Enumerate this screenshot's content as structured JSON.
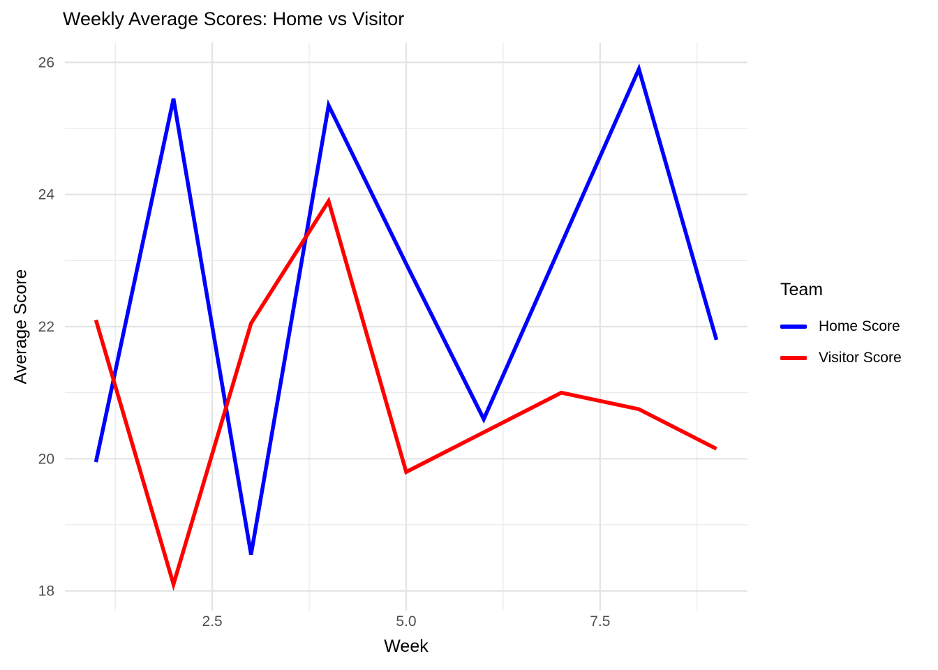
{
  "title": "Weekly Average Scores: Home vs Visitor",
  "colors": {
    "home": "#0000FF",
    "visitor": "#FF0000",
    "tick_text": "#4d4d4d",
    "grid_major": "#e3e3e3",
    "grid_minor": "#ebebeb",
    "background": "#ffffff"
  },
  "legend": {
    "title": "Team",
    "items": [
      {
        "label": "Home Score",
        "color": "#0000FF"
      },
      {
        "label": "Visitor Score",
        "color": "#FF0000"
      }
    ]
  },
  "chart_data": {
    "type": "line",
    "title": "Weekly Average Scores: Home vs Visitor",
    "xlabel": "Week",
    "ylabel": "Average Score",
    "x": [
      1,
      2,
      3,
      4,
      5,
      6,
      7,
      8,
      9
    ],
    "series": [
      {
        "name": "Home Score",
        "color": "#0000FF",
        "values": [
          19.95,
          25.45,
          18.55,
          25.35,
          22.95,
          20.6,
          23.25,
          25.9,
          21.8
        ]
      },
      {
        "name": "Visitor Score",
        "color": "#FF0000",
        "values": [
          22.1,
          18.1,
          22.05,
          23.9,
          19.8,
          20.4,
          21.0,
          20.75,
          20.15
        ]
      }
    ],
    "x_ticks": [
      2.5,
      5.0,
      7.5
    ],
    "x_tick_labels": [
      "2.5",
      "5.0",
      "7.5"
    ],
    "x_minor_ticks": [
      1.25,
      3.75,
      6.25,
      8.75
    ],
    "y_ticks": [
      18,
      20,
      22,
      24,
      26
    ],
    "y_tick_labels": [
      "18",
      "20",
      "22",
      "24",
      "26"
    ],
    "y_minor_ticks": [
      19,
      21,
      23,
      25
    ],
    "xlim": [
      0.6,
      9.4
    ],
    "ylim": [
      17.7,
      26.3
    ],
    "grid": true,
    "legend_title": "Team",
    "legend_position": "right",
    "line_width": 5.5
  }
}
